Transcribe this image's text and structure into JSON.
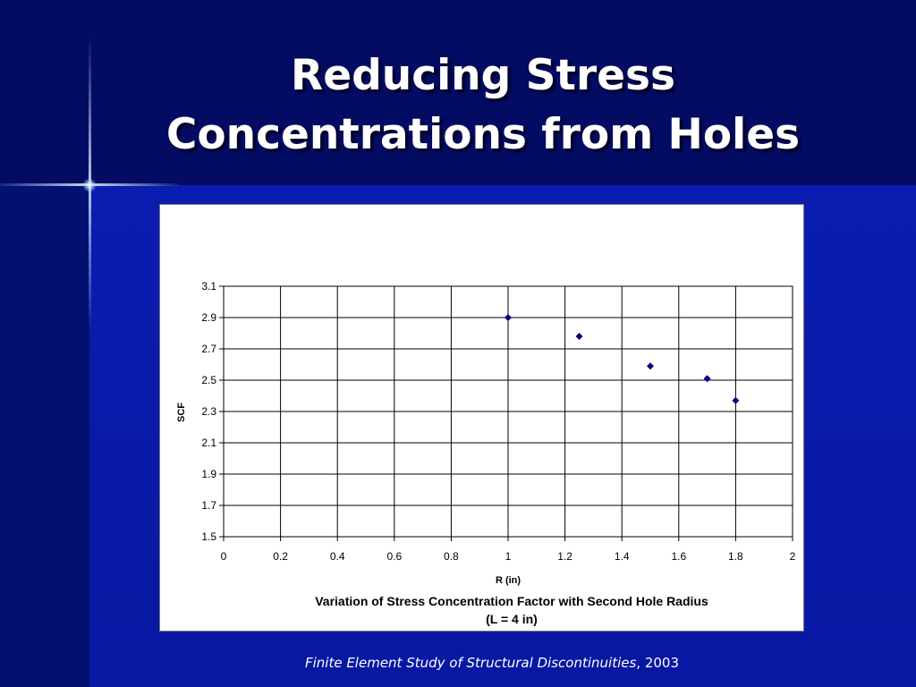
{
  "slide": {
    "title_line1": "Reducing Stress",
    "title_line2": "Concentrations from Holes",
    "caption_italic": "Finite Element Study of Structural Discontinuities",
    "caption_rest": ", 2003"
  },
  "chart_data": {
    "type": "scatter",
    "title_line1": "Variation of Stress Concentration Factor with Second Hole Radius",
    "title_line2": "(L = 4 in)",
    "xlabel": "R (in)",
    "ylabel": "SCF",
    "xlim": [
      0,
      2
    ],
    "ylim": [
      1.5,
      3.1
    ],
    "xticks": [
      "0",
      "0.2",
      "0.4",
      "0.6",
      "0.8",
      "1",
      "1.2",
      "1.4",
      "1.6",
      "1.8",
      "2"
    ],
    "yticks": [
      "1.5",
      "1.7",
      "1.9",
      "2.1",
      "2.3",
      "2.5",
      "2.7",
      "2.9",
      "3.1"
    ],
    "grid": true,
    "marker_color": "#000080",
    "x": [
      1.0,
      1.25,
      1.5,
      1.7,
      1.8
    ],
    "y": [
      2.9,
      2.78,
      2.59,
      2.51,
      2.37
    ]
  }
}
